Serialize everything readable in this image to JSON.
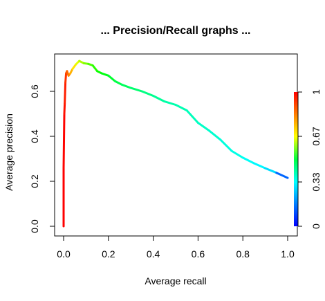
{
  "chart_data": {
    "type": "line",
    "title": "... Precision/Recall graphs ...",
    "xlabel": "Average recall",
    "ylabel": "Average precision",
    "xlim": [
      0,
      1
    ],
    "ylim": [
      0,
      0.75
    ],
    "x_ticks": [
      0.0,
      0.2,
      0.4,
      0.6,
      0.8,
      1.0
    ],
    "x_tick_labels": [
      "0.0",
      "0.2",
      "0.4",
      "0.6",
      "0.8",
      "1.0"
    ],
    "y_ticks": [
      0.0,
      0.2,
      0.4,
      0.6
    ],
    "y_tick_labels": [
      "0.0",
      "0.2",
      "0.4",
      "0.6"
    ],
    "grid": false,
    "colorbar": {
      "placement": "right",
      "palette": "rainbow (red at 1, blue at 0)",
      "range": [
        0,
        1
      ],
      "ticks": [
        0,
        0.33,
        0.67,
        1
      ],
      "tick_labels": [
        "0",
        "0.33",
        "0.67",
        "1"
      ]
    },
    "series": [
      {
        "color_by": "cutoff",
        "points": [
          {
            "x": 0.0,
            "y": 0.0,
            "c": 1.0
          },
          {
            "x": 0.0,
            "y": 0.26,
            "c": 1.0
          },
          {
            "x": 0.003,
            "y": 0.5,
            "c": 0.99
          },
          {
            "x": 0.005,
            "y": 0.545,
            "c": 0.98
          },
          {
            "x": 0.008,
            "y": 0.64,
            "c": 0.96
          },
          {
            "x": 0.011,
            "y": 0.68,
            "c": 0.94
          },
          {
            "x": 0.015,
            "y": 0.69,
            "c": 0.92
          },
          {
            "x": 0.022,
            "y": 0.67,
            "c": 0.88
          },
          {
            "x": 0.03,
            "y": 0.68,
            "c": 0.85
          },
          {
            "x": 0.04,
            "y": 0.7,
            "c": 0.8
          },
          {
            "x": 0.055,
            "y": 0.72,
            "c": 0.75
          },
          {
            "x": 0.07,
            "y": 0.735,
            "c": 0.7
          },
          {
            "x": 0.09,
            "y": 0.725,
            "c": 0.64
          },
          {
            "x": 0.11,
            "y": 0.722,
            "c": 0.6
          },
          {
            "x": 0.13,
            "y": 0.715,
            "c": 0.56
          },
          {
            "x": 0.15,
            "y": 0.69,
            "c": 0.52
          },
          {
            "x": 0.17,
            "y": 0.68,
            "c": 0.5
          },
          {
            "x": 0.2,
            "y": 0.67,
            "c": 0.47
          },
          {
            "x": 0.23,
            "y": 0.645,
            "c": 0.44
          },
          {
            "x": 0.26,
            "y": 0.63,
            "c": 0.42
          },
          {
            "x": 0.3,
            "y": 0.615,
            "c": 0.4
          },
          {
            "x": 0.35,
            "y": 0.6,
            "c": 0.38
          },
          {
            "x": 0.4,
            "y": 0.58,
            "c": 0.36
          },
          {
            "x": 0.45,
            "y": 0.555,
            "c": 0.34
          },
          {
            "x": 0.5,
            "y": 0.54,
            "c": 0.33
          },
          {
            "x": 0.55,
            "y": 0.515,
            "c": 0.32
          },
          {
            "x": 0.6,
            "y": 0.46,
            "c": 0.31
          },
          {
            "x": 0.65,
            "y": 0.425,
            "c": 0.3
          },
          {
            "x": 0.7,
            "y": 0.385,
            "c": 0.29
          },
          {
            "x": 0.75,
            "y": 0.335,
            "c": 0.28
          },
          {
            "x": 0.8,
            "y": 0.305,
            "c": 0.27
          },
          {
            "x": 0.85,
            "y": 0.28,
            "c": 0.25
          },
          {
            "x": 0.9,
            "y": 0.258,
            "c": 0.23
          },
          {
            "x": 0.95,
            "y": 0.238,
            "c": 0.2
          },
          {
            "x": 1.0,
            "y": 0.215,
            "c": 0.0
          }
        ]
      }
    ]
  },
  "colors": {
    "background": "#ffffff",
    "axis": "#000000",
    "text": "#000000"
  }
}
